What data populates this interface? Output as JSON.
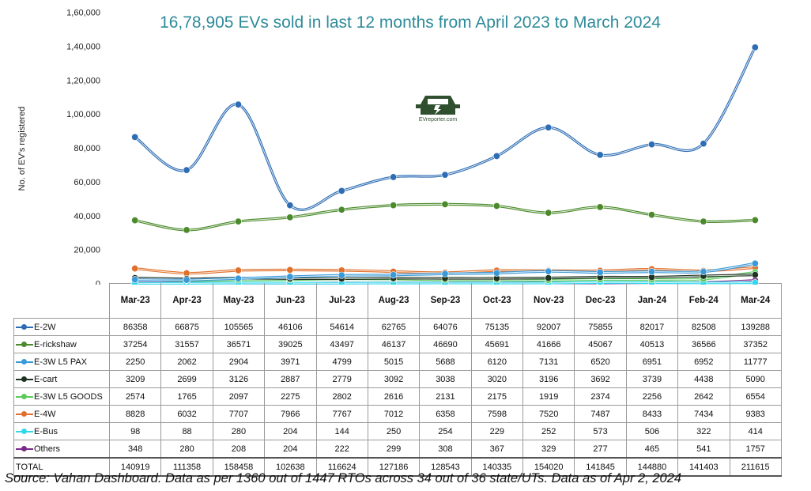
{
  "chart_data": {
    "type": "line",
    "title": "16,78,905 EVs sold in last 12 months from April 2023 to March 2024",
    "xlabel": "",
    "ylabel": "No. of EV's registered",
    "ylim": [
      0,
      160000
    ],
    "yticks": [
      "0",
      "20,000",
      "40,000",
      "60,000",
      "80,000",
      "1,00,000",
      "1,20,000",
      "1,40,000",
      "1,60,000"
    ],
    "yticks_values": [
      0,
      20000,
      40000,
      60000,
      80000,
      100000,
      120000,
      140000,
      160000
    ],
    "grid": false,
    "legend": "table-left",
    "categories": [
      "Mar-23",
      "Apr-23",
      "May-23",
      "Jun-23",
      "Jul-23",
      "Aug-23",
      "Sep-23",
      "Oct-23",
      "Nov-23",
      "Dec-23",
      "Jan-24",
      "Feb-24",
      "Mar-24"
    ],
    "series": [
      {
        "name": "E-2W",
        "color": "#2e6db4",
        "values": [
          86358,
          66875,
          105565,
          46106,
          54614,
          62765,
          64076,
          75135,
          92007,
          75855,
          82017,
          82508,
          139288
        ]
      },
      {
        "name": "E-rickshaw",
        "color": "#4a8a2a",
        "values": [
          37254,
          31557,
          36571,
          39025,
          43497,
          46137,
          46690,
          45691,
          41666,
          45067,
          40513,
          36566,
          37352
        ]
      },
      {
        "name": "E-3W L5 PAX",
        "color": "#3a9ad9",
        "values": [
          2250,
          2062,
          2904,
          3971,
          4799,
          5015,
          5688,
          6120,
          7131,
          6520,
          6951,
          6952,
          11777
        ]
      },
      {
        "name": "E-cart",
        "color": "#1e3320",
        "values": [
          3209,
          2699,
          3126,
          2887,
          2779,
          3092,
          3038,
          3020,
          3196,
          3692,
          3739,
          4438,
          5090
        ]
      },
      {
        "name": "E-3W L5 GOODS",
        "color": "#5ccb5c",
        "values": [
          2574,
          1765,
          2097,
          2275,
          2802,
          2616,
          2131,
          2175,
          1919,
          2374,
          2256,
          2642,
          6554
        ]
      },
      {
        "name": "E-4W",
        "color": "#e0702a",
        "values": [
          8828,
          6032,
          7707,
          7966,
          7767,
          7012,
          6358,
          7598,
          7520,
          7487,
          8433,
          7434,
          9383
        ]
      },
      {
        "name": "E-Bus",
        "color": "#30d8ec",
        "values": [
          98,
          88,
          280,
          204,
          144,
          250,
          254,
          229,
          252,
          573,
          506,
          322,
          414
        ]
      },
      {
        "name": "Others",
        "color": "#7a2a8a",
        "values": [
          348,
          280,
          208,
          204,
          222,
          299,
          308,
          367,
          329,
          277,
          465,
          541,
          1757
        ]
      }
    ],
    "total": {
      "name": "TOTAL",
      "values": [
        140919,
        111358,
        158458,
        102638,
        116624,
        127186,
        128543,
        140335,
        154020,
        141845,
        144880,
        141403,
        211615
      ]
    }
  },
  "logo": {
    "text": "EVreporter.com"
  },
  "source_note": "Source: Vahan Dashboard. Data as per 1360 out of 1447 RTOs across 34 out of 36 state/UTs. Data as of Apr 2, 2024"
}
